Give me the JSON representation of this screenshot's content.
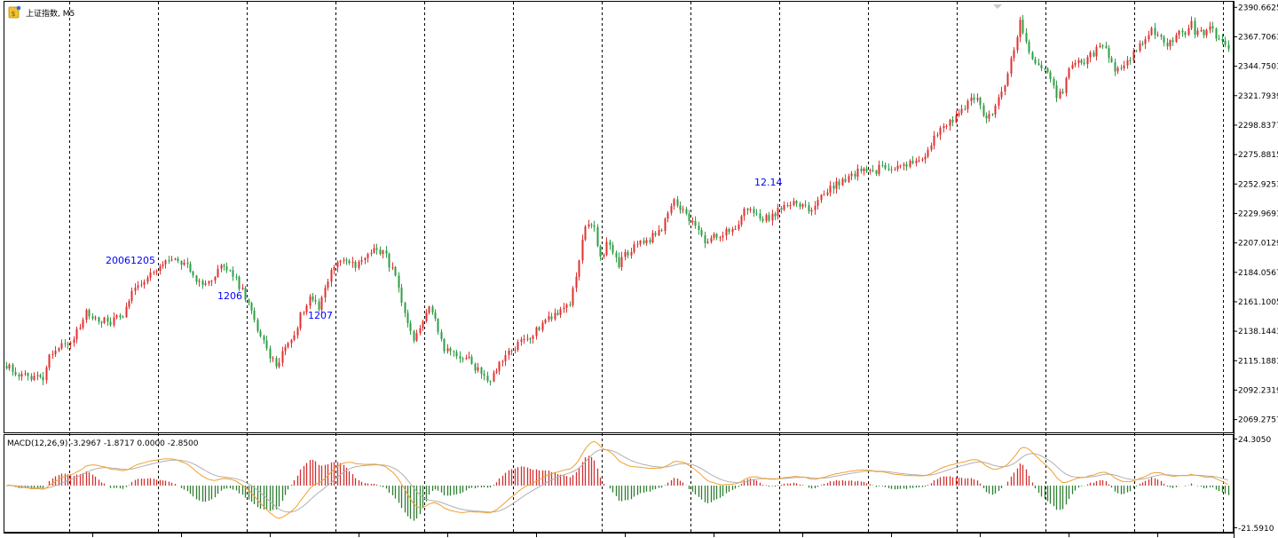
{
  "header": {
    "symbol_title": "上证指数, M5",
    "macd_title": "MACD(12,26,9) -3.2967 -1.8717 0.0000 -2.8500"
  },
  "price_axis": {
    "labels": [
      "2390.6625",
      "2367.7063",
      "2344.7501",
      "2321.7939",
      "2298.8377",
      "2275.8815",
      "2252.9253",
      "2229.9691",
      "2207.0129",
      "2184.0567",
      "2161.1005",
      "2138.1443",
      "2115.1881",
      "2092.2319",
      "2069.2757"
    ]
  },
  "macd_axis": {
    "max_label": "24.3050",
    "min_label": "-21.5910"
  },
  "annotations": [
    "2006",
    "1205",
    "1206",
    "1207",
    "12.14"
  ],
  "colors": {
    "bull": "#e03131",
    "bear": "#2f9e44",
    "hist_up": "#d32f2f",
    "hist_down": "#2e7d32",
    "macd_line": "#f0a030",
    "signal_line": "#b0b0b0",
    "annotation": "#0000ff"
  },
  "chart_data": [
    {
      "type": "candlestick",
      "title": "上证指数, M5",
      "ylim": [
        2060,
        2395
      ],
      "session_breaks": [
        21,
        50,
        79,
        108,
        137,
        166,
        195,
        224,
        253,
        282,
        311,
        340,
        369,
        398
      ],
      "anchors": [
        [
          0,
          2112
        ],
        [
          4,
          2104
        ],
        [
          8,
          2102
        ],
        [
          12,
          2103
        ],
        [
          14,
          2120
        ],
        [
          18,
          2128
        ],
        [
          22,
          2132
        ],
        [
          26,
          2152
        ],
        [
          30,
          2148
        ],
        [
          34,
          2145
        ],
        [
          38,
          2152
        ],
        [
          42,
          2174
        ],
        [
          46,
          2180
        ],
        [
          50,
          2187
        ],
        [
          54,
          2195
        ],
        [
          58,
          2191
        ],
        [
          62,
          2178
        ],
        [
          66,
          2175
        ],
        [
          70,
          2190
        ],
        [
          74,
          2182
        ],
        [
          78,
          2165
        ],
        [
          82,
          2140
        ],
        [
          86,
          2118
        ],
        [
          88,
          2112
        ],
        [
          92,
          2130
        ],
        [
          94,
          2136
        ],
        [
          96,
          2150
        ],
        [
          99,
          2166
        ],
        [
          102,
          2158
        ],
        [
          104,
          2172
        ],
        [
          107,
          2190
        ],
        [
          110,
          2195
        ],
        [
          114,
          2188
        ],
        [
          118,
          2198
        ],
        [
          121,
          2204
        ],
        [
          124,
          2196
        ],
        [
          127,
          2180
        ],
        [
          130,
          2150
        ],
        [
          133,
          2128
        ],
        [
          136,
          2148
        ],
        [
          138,
          2160
        ],
        [
          140,
          2145
        ],
        [
          143,
          2125
        ],
        [
          147,
          2120
        ],
        [
          150,
          2118
        ],
        [
          153,
          2110
        ],
        [
          156,
          2104
        ],
        [
          157,
          2098
        ],
        [
          160,
          2108
        ],
        [
          163,
          2118
        ],
        [
          168,
          2130
        ],
        [
          172,
          2136
        ],
        [
          176,
          2148
        ],
        [
          180,
          2152
        ],
        [
          184,
          2160
        ],
        [
          186,
          2180
        ],
        [
          188,
          2210
        ],
        [
          190,
          2224
        ],
        [
          192,
          2218
        ],
        [
          194,
          2196
        ],
        [
          196,
          2205
        ],
        [
          198,
          2200
        ],
        [
          200,
          2190
        ],
        [
          202,
          2198
        ],
        [
          206,
          2206
        ],
        [
          210,
          2210
        ],
        [
          214,
          2218
        ],
        [
          216,
          2230
        ],
        [
          218,
          2240
        ],
        [
          220,
          2232
        ],
        [
          222,
          2230
        ],
        [
          224,
          2222
        ],
        [
          226,
          2216
        ],
        [
          228,
          2205
        ],
        [
          230,
          2210
        ],
        [
          234,
          2215
        ],
        [
          238,
          2220
        ],
        [
          242,
          2235
        ],
        [
          244,
          2232
        ],
        [
          246,
          2224
        ],
        [
          250,
          2228
        ],
        [
          254,
          2235
        ],
        [
          258,
          2238
        ],
        [
          262,
          2232
        ],
        [
          264,
          2236
        ],
        [
          266,
          2242
        ],
        [
          270,
          2252
        ],
        [
          274,
          2255
        ],
        [
          276,
          2260
        ],
        [
          280,
          2266
        ],
        [
          284,
          2262
        ],
        [
          286,
          2268
        ],
        [
          288,
          2264
        ],
        [
          292,
          2265
        ],
        [
          296,
          2270
        ],
        [
          300,
          2272
        ],
        [
          302,
          2285
        ],
        [
          306,
          2298
        ],
        [
          310,
          2306
        ],
        [
          314,
          2316
        ],
        [
          317,
          2322
        ],
        [
          318,
          2312
        ],
        [
          320,
          2305
        ],
        [
          322,
          2310
        ],
        [
          324,
          2318
        ],
        [
          326,
          2330
        ],
        [
          328,
          2350
        ],
        [
          330,
          2370
        ],
        [
          331,
          2378
        ],
        [
          333,
          2364
        ],
        [
          335,
          2350
        ],
        [
          337,
          2345
        ],
        [
          340,
          2342
        ],
        [
          342,
          2332
        ],
        [
          343,
          2322
        ],
        [
          345,
          2326
        ],
        [
          347,
          2340
        ],
        [
          350,
          2350
        ],
        [
          352,
          2348
        ],
        [
          355,
          2355
        ],
        [
          358,
          2362
        ],
        [
          360,
          2350
        ],
        [
          362,
          2340
        ],
        [
          364,
          2345
        ],
        [
          367,
          2352
        ],
        [
          370,
          2360
        ],
        [
          372,
          2366
        ],
        [
          374,
          2372
        ],
        [
          376,
          2370
        ],
        [
          378,
          2362
        ],
        [
          380,
          2364
        ],
        [
          383,
          2370
        ],
        [
          385,
          2368
        ],
        [
          387,
          2378
        ],
        [
          388,
          2372
        ],
        [
          391,
          2370
        ],
        [
          393,
          2376
        ],
        [
          395,
          2368
        ],
        [
          398,
          2364
        ],
        [
          399,
          2358
        ]
      ]
    },
    {
      "type": "macd",
      "title": "MACD(12,26,9) -3.2967 -1.8717 0.0000 -2.8500",
      "params": [
        12,
        26,
        9
      ],
      "values": {
        "macd": -3.2967,
        "signal": -1.8717,
        "level": 0.0,
        "histogram": -2.85
      },
      "ylim": [
        -21.591,
        24.305
      ]
    }
  ]
}
